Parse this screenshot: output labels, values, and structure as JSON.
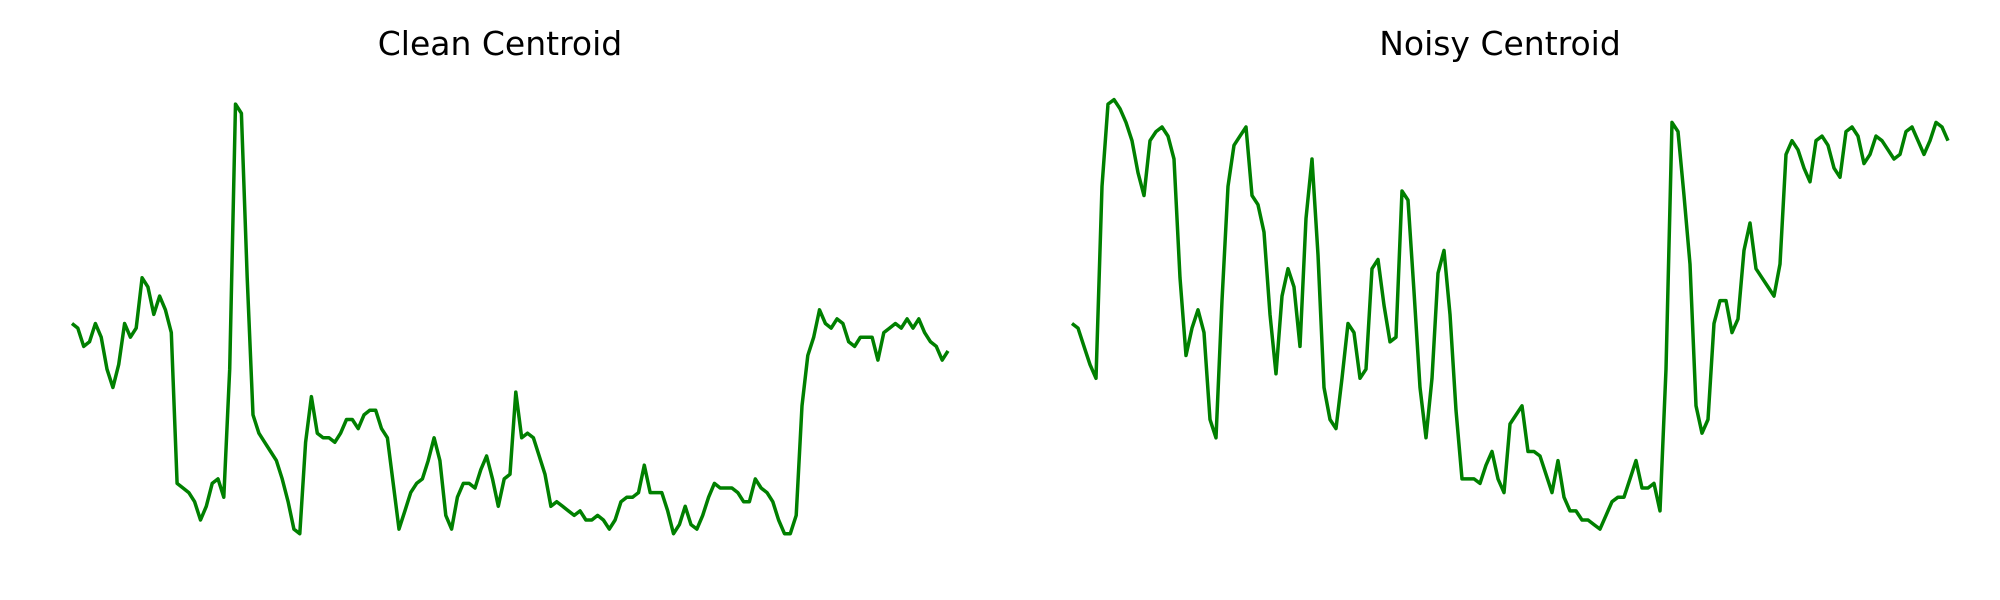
{
  "chart_data": [
    {
      "type": "line",
      "title": "Clean Centroid",
      "color": "#008000",
      "ylim": [
        0,
        1
      ],
      "values": [
        0.5,
        0.49,
        0.45,
        0.46,
        0.5,
        0.47,
        0.4,
        0.36,
        0.41,
        0.5,
        0.47,
        0.49,
        0.6,
        0.58,
        0.52,
        0.56,
        0.53,
        0.48,
        0.15,
        0.14,
        0.13,
        0.11,
        0.07,
        0.1,
        0.15,
        0.16,
        0.12,
        0.4,
        0.98,
        0.96,
        0.6,
        0.3,
        0.26,
        0.24,
        0.22,
        0.2,
        0.16,
        0.11,
        0.05,
        0.04,
        0.24,
        0.34,
        0.26,
        0.25,
        0.25,
        0.24,
        0.26,
        0.29,
        0.29,
        0.27,
        0.3,
        0.31,
        0.31,
        0.27,
        0.25,
        0.15,
        0.05,
        0.09,
        0.13,
        0.15,
        0.16,
        0.2,
        0.25,
        0.2,
        0.08,
        0.05,
        0.12,
        0.15,
        0.15,
        0.14,
        0.18,
        0.21,
        0.16,
        0.1,
        0.16,
        0.17,
        0.35,
        0.25,
        0.26,
        0.25,
        0.21,
        0.17,
        0.1,
        0.11,
        0.1,
        0.09,
        0.08,
        0.09,
        0.07,
        0.07,
        0.08,
        0.07,
        0.05,
        0.07,
        0.11,
        0.12,
        0.12,
        0.13,
        0.19,
        0.13,
        0.13,
        0.13,
        0.09,
        0.04,
        0.06,
        0.1,
        0.06,
        0.05,
        0.08,
        0.12,
        0.15,
        0.14,
        0.14,
        0.14,
        0.13,
        0.11,
        0.11,
        0.16,
        0.14,
        0.13,
        0.11,
        0.07,
        0.04,
        0.04,
        0.08,
        0.32,
        0.43,
        0.47,
        0.53,
        0.5,
        0.49,
        0.51,
        0.5,
        0.46,
        0.45,
        0.47,
        0.47,
        0.47,
        0.42,
        0.48,
        0.49,
        0.5,
        0.49,
        0.51,
        0.49,
        0.51,
        0.48,
        0.46,
        0.45,
        0.42,
        0.44
      ]
    },
    {
      "type": "line",
      "title": "Noisy Centroid",
      "color": "#008000",
      "ylim": [
        0,
        1
      ],
      "values": [
        0.5,
        0.49,
        0.45,
        0.41,
        0.38,
        0.8,
        0.98,
        0.99,
        0.97,
        0.94,
        0.9,
        0.83,
        0.78,
        0.9,
        0.92,
        0.93,
        0.91,
        0.86,
        0.6,
        0.43,
        0.49,
        0.53,
        0.48,
        0.29,
        0.25,
        0.55,
        0.8,
        0.89,
        0.91,
        0.93,
        0.78,
        0.76,
        0.7,
        0.52,
        0.39,
        0.56,
        0.62,
        0.58,
        0.45,
        0.73,
        0.86,
        0.65,
        0.36,
        0.29,
        0.27,
        0.38,
        0.5,
        0.48,
        0.38,
        0.4,
        0.62,
        0.64,
        0.54,
        0.46,
        0.47,
        0.79,
        0.77,
        0.57,
        0.36,
        0.25,
        0.38,
        0.61,
        0.66,
        0.52,
        0.31,
        0.16,
        0.16,
        0.16,
        0.15,
        0.19,
        0.22,
        0.16,
        0.13,
        0.28,
        0.3,
        0.32,
        0.22,
        0.22,
        0.21,
        0.17,
        0.13,
        0.2,
        0.12,
        0.09,
        0.09,
        0.07,
        0.07,
        0.06,
        0.05,
        0.08,
        0.11,
        0.12,
        0.12,
        0.16,
        0.2,
        0.14,
        0.14,
        0.15,
        0.09,
        0.4,
        0.94,
        0.92,
        0.78,
        0.63,
        0.32,
        0.26,
        0.29,
        0.5,
        0.55,
        0.55,
        0.48,
        0.51,
        0.66,
        0.72,
        0.62,
        0.6,
        0.58,
        0.56,
        0.63,
        0.87,
        0.9,
        0.88,
        0.84,
        0.81,
        0.9,
        0.91,
        0.89,
        0.84,
        0.82,
        0.92,
        0.93,
        0.91,
        0.85,
        0.87,
        0.91,
        0.9,
        0.88,
        0.86,
        0.87,
        0.92,
        0.93,
        0.9,
        0.87,
        0.9,
        0.94,
        0.93,
        0.9
      ]
    }
  ]
}
